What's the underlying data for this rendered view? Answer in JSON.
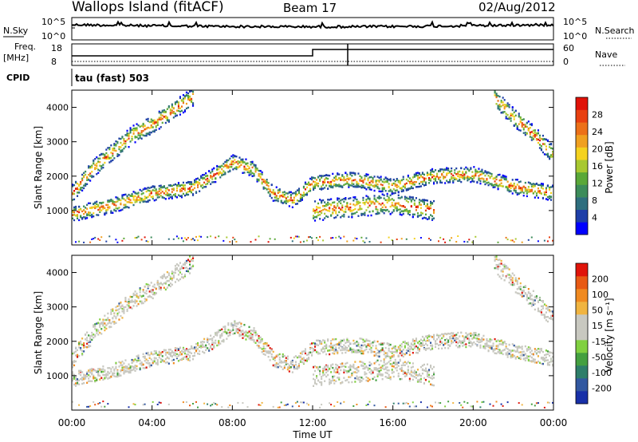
{
  "header": {
    "site": "Wallops Island (fitACF)",
    "beam": "Beam 17",
    "date": "02/Aug/2012"
  },
  "top_panels": {
    "nsky_label": "N.Sky",
    "nsky_ticks": [
      "10^5",
      "10^0"
    ],
    "nsearch_label": "N.Search",
    "nsearch_ticks": [
      "10^5",
      "10^0"
    ],
    "freq_label_1": "Freq.",
    "freq_label_2": "[MHz]",
    "freq_ticks": [
      "18",
      "8"
    ],
    "nave_label": "Nave",
    "nave_ticks": [
      "60",
      "0"
    ],
    "cpid_label": "CPID",
    "cpid_value": "tau (fast) 503"
  },
  "chart_data": [
    {
      "type": "heatmap",
      "name": "power",
      "xlabel": "",
      "ylabel": "Slant Range [km]",
      "x_range_hours": [
        0,
        24
      ],
      "ylim": [
        0,
        4500
      ],
      "y_ticks": [
        "1000",
        "2000",
        "3000",
        "4000"
      ],
      "colorbar_label": "Power [dB]",
      "colorbar_ticks": [
        "28",
        "24",
        "20",
        "16",
        "12",
        "8",
        "4"
      ],
      "colorbar_colors": [
        "#0000ff",
        "#1e3fa8",
        "#2e6e7e",
        "#3c8c5a",
        "#5aa838",
        "#a8c830",
        "#f4d21e",
        "#f0a020",
        "#ec7018",
        "#e84010",
        "#e01208"
      ]
    },
    {
      "type": "heatmap",
      "name": "velocity",
      "xlabel": "Time UT",
      "ylabel": "Slant Range [km]",
      "x_range_hours": [
        0,
        24
      ],
      "ylim": [
        0,
        4500
      ],
      "y_ticks": [
        "1000",
        "2000",
        "3000",
        "4000"
      ],
      "x_ticks": [
        "00:00",
        "04:00",
        "08:00",
        "12:00",
        "16:00",
        "20:00",
        "00:00"
      ],
      "colorbar_label": "Velocity [m s⁻¹]",
      "colorbar_ticks": [
        "200",
        "100",
        "50",
        "15",
        "-15",
        "-50",
        "-100",
        "-200"
      ],
      "colorbar_colors": [
        "#1830a8",
        "#3258a0",
        "#2e7e6a",
        "#44a040",
        "#80d040",
        "#c8c8c0",
        "#c8c8c0",
        "#f0b440",
        "#f08a20",
        "#e85a14",
        "#e0140a"
      ]
    }
  ],
  "x_axis": {
    "title": "Time UT",
    "ticks": [
      "00:00",
      "04:00",
      "08:00",
      "12:00",
      "16:00",
      "20:00",
      "00:00"
    ]
  }
}
